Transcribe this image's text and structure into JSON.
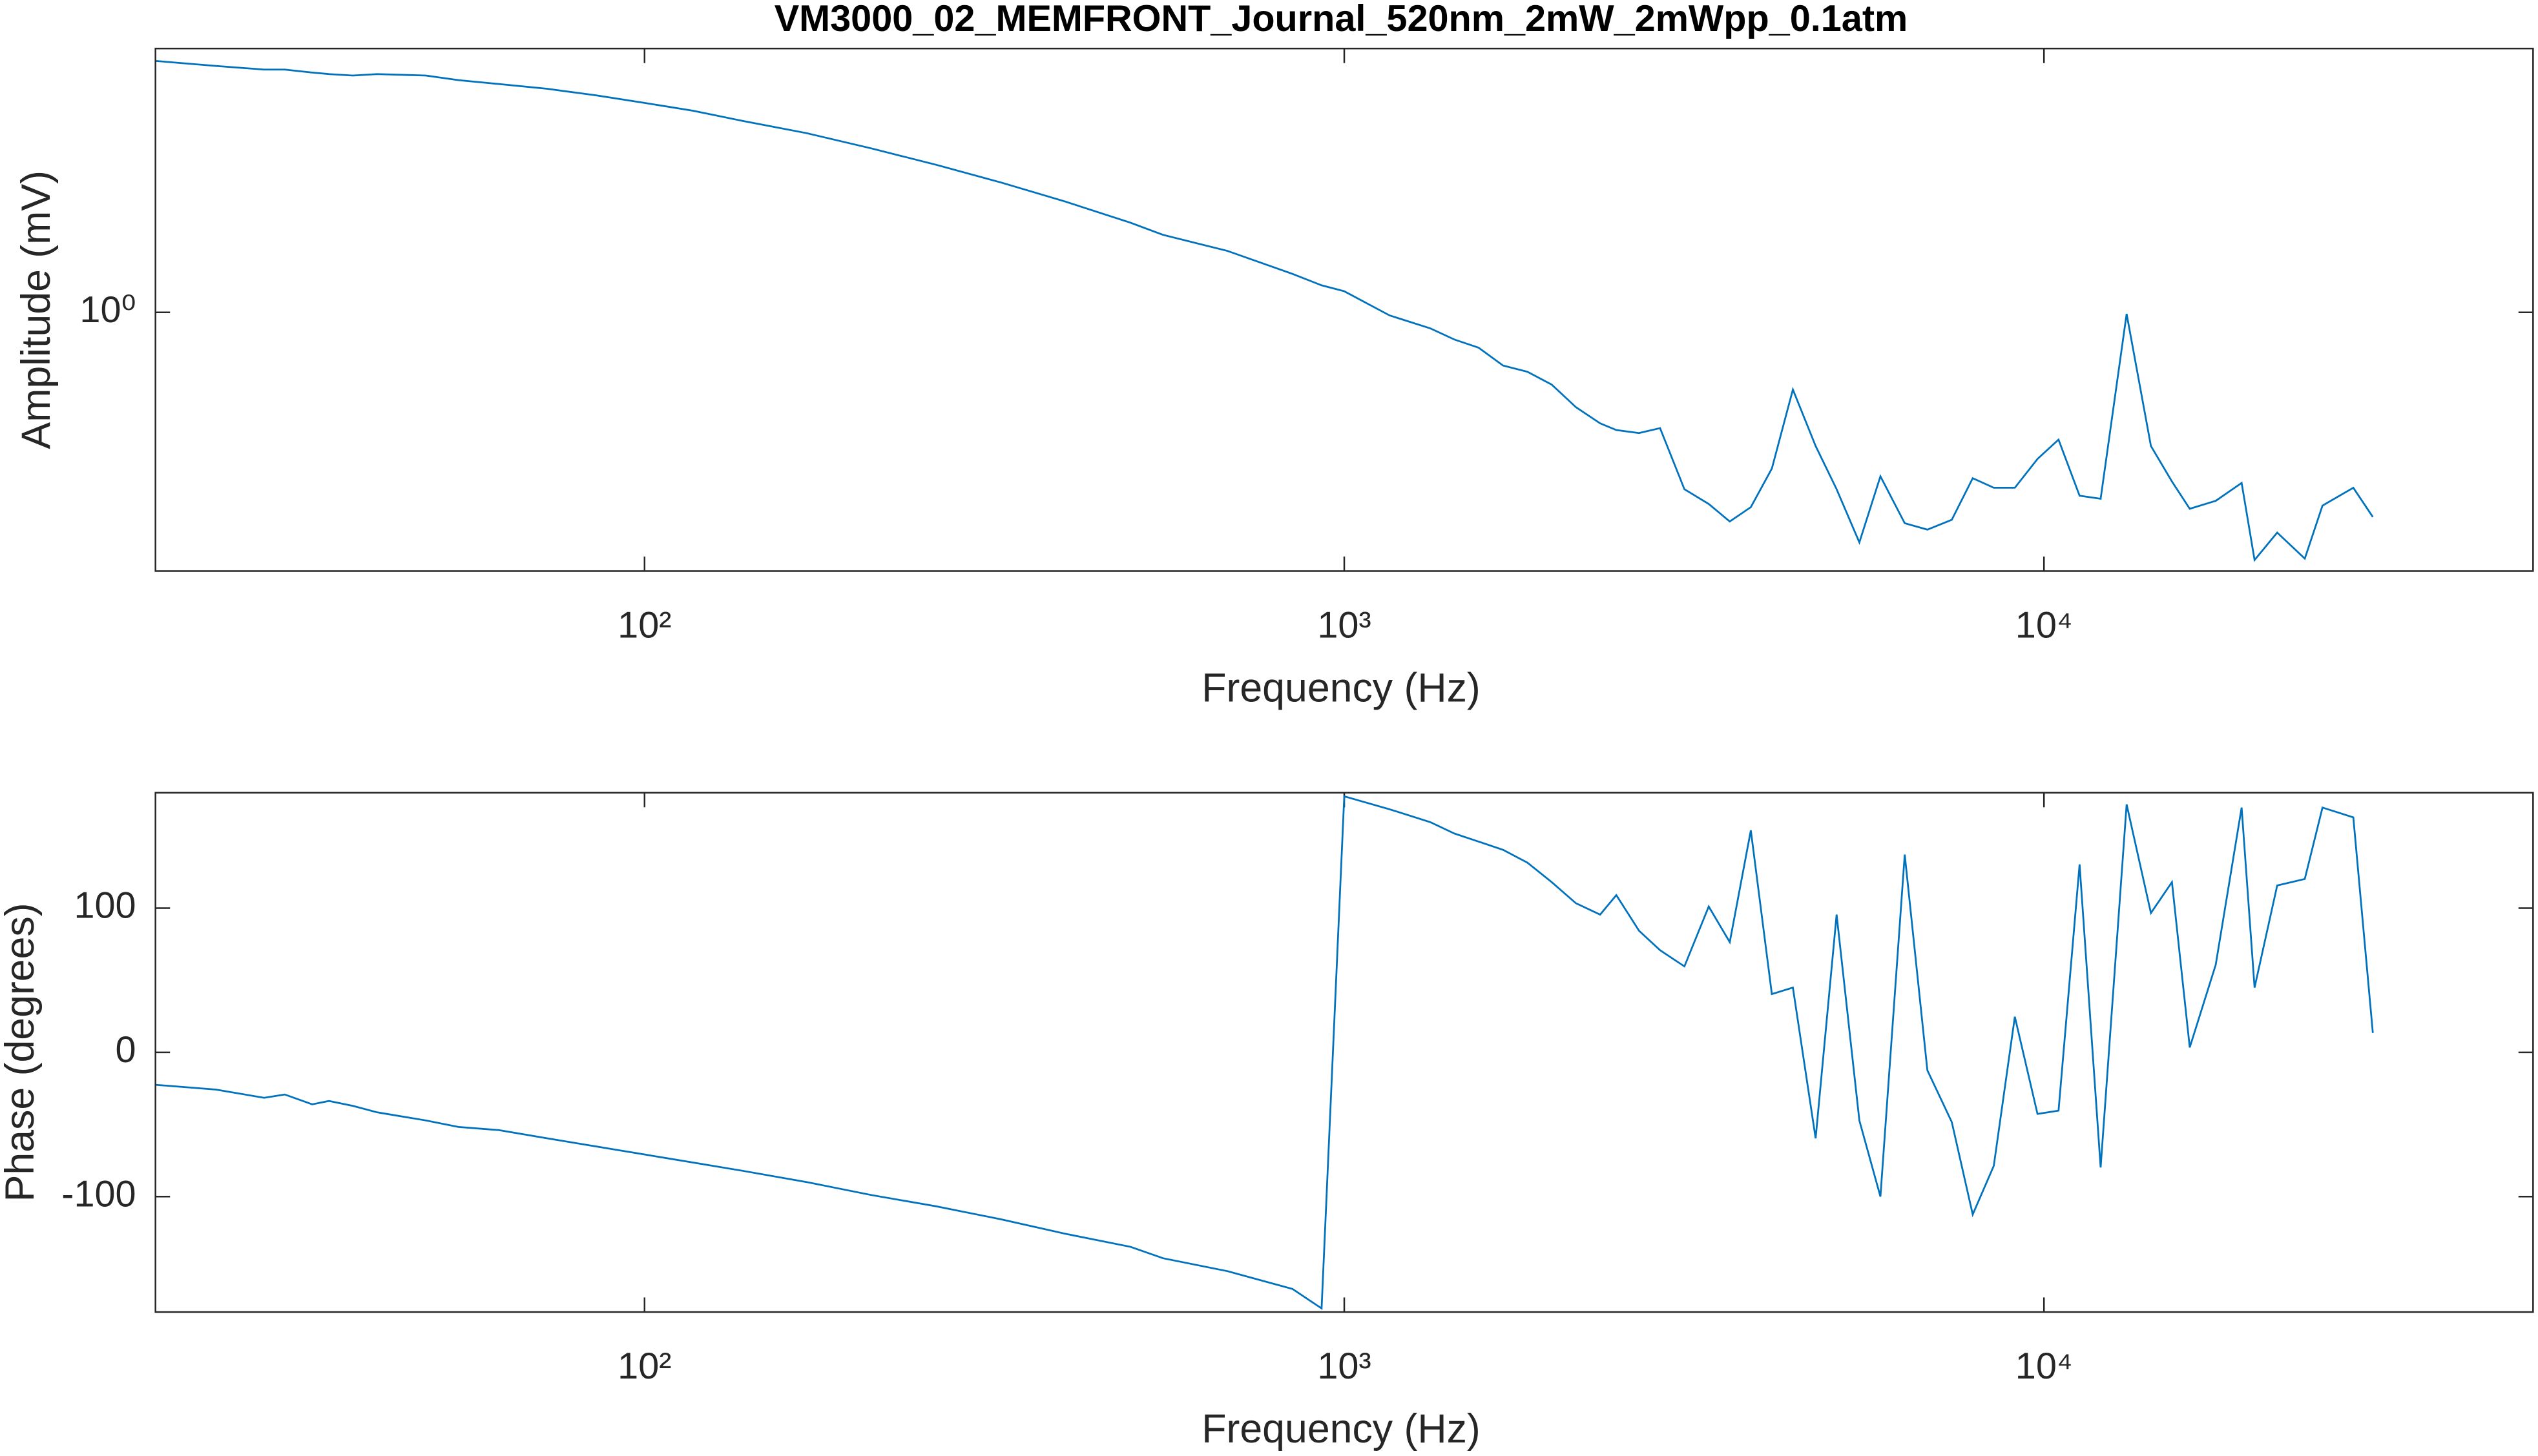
{
  "chart_data": [
    {
      "type": "line",
      "title": "VM3000_02_MEMFRONT_Journal_520nm_2mW_2mWpp_0.1atm",
      "xlabel": "Frequency (Hz)",
      "ylabel": "Amplitude (mV)",
      "xscale": "log",
      "yscale": "log",
      "xlim": [
        20,
        50000
      ],
      "ylim": [
        0.31,
        3.3
      ],
      "xticks": [
        {
          "value": 100,
          "label": "10²"
        },
        {
          "value": 1000,
          "label": "10³"
        },
        {
          "value": 10000,
          "label": "10⁴"
        }
      ],
      "yticks": [
        {
          "value": 1,
          "label": "10⁰"
        }
      ],
      "color": "#0072bd",
      "x": [
        20,
        24.4,
        28.6,
        30.6,
        33.5,
        35.4,
        38.3,
        41.5,
        48.7,
        54.2,
        61.9,
        72.6,
        85.2,
        100,
        117.3,
        137.7,
        170.4,
        210.9,
        261.0,
        323.0,
        399.7,
        494.9,
        550.7,
        681.3,
        843.3,
        928.1,
        1000,
        1161,
        1327,
        1437,
        1556,
        1686,
        1827,
        1979,
        2143,
        2321,
        2448,
        2638,
        2827,
        3063,
        3318,
        3556,
        3811,
        4084,
        4377,
        4717,
        5054,
        5447,
        5838,
        6324,
        6813,
        7383,
        7910,
        8477,
        9086,
        9789,
        10491,
        11243,
        12050,
        13126,
        14218,
        15237,
        16156,
        17597,
        19163,
        19998,
        21544,
        23592,
        25006,
        27676,
        29512
      ],
      "values": [
        3.12,
        3.05,
        3.0,
        3.0,
        2.96,
        2.94,
        2.92,
        2.94,
        2.92,
        2.86,
        2.81,
        2.75,
        2.67,
        2.58,
        2.49,
        2.38,
        2.25,
        2.1,
        1.95,
        1.8,
        1.65,
        1.5,
        1.42,
        1.32,
        1.19,
        1.13,
        1.1,
        0.986,
        0.93,
        0.884,
        0.852,
        0.786,
        0.764,
        0.721,
        0.651,
        0.605,
        0.587,
        0.579,
        0.592,
        0.449,
        0.42,
        0.388,
        0.414,
        0.493,
        0.705,
        0.546,
        0.449,
        0.353,
        0.476,
        0.385,
        0.374,
        0.391,
        0.472,
        0.452,
        0.452,
        0.515,
        0.562,
        0.436,
        0.43,
        0.993,
        0.546,
        0.465,
        0.411,
        0.426,
        0.462,
        0.326,
        0.369,
        0.328,
        0.417,
        0.452,
        0.396
      ]
    },
    {
      "type": "line",
      "xlabel": "Frequency (Hz)",
      "ylabel": "Phase (degrees)",
      "xscale": "log",
      "yscale": "linear",
      "xlim": [
        20,
        50000
      ],
      "ylim": [
        -180,
        180
      ],
      "xticks": [
        {
          "value": 100,
          "label": "10²"
        },
        {
          "value": 1000,
          "label": "10³"
        },
        {
          "value": 10000,
          "label": "10⁴"
        }
      ],
      "yticks": [
        -100,
        0,
        100
      ],
      "color": "#0072bd",
      "x": [
        20,
        24.4,
        28.6,
        30.6,
        33.5,
        35.4,
        38.3,
        41.5,
        48.7,
        54.2,
        61.9,
        72.6,
        85.2,
        100,
        117.3,
        137.7,
        170.4,
        210.9,
        261.0,
        323.0,
        399.7,
        494.9,
        550.7,
        681.3,
        843.3,
        928.1,
        1000,
        1161,
        1327,
        1437,
        1556,
        1686,
        1827,
        1979,
        2143,
        2321,
        2448,
        2638,
        2827,
        3063,
        3318,
        3556,
        3811,
        4084,
        4377,
        4717,
        5054,
        5447,
        5838,
        6324,
        6813,
        7383,
        7910,
        8477,
        9086,
        9789,
        10491,
        11243,
        12050,
        13126,
        14218,
        15237,
        16156,
        17597,
        19163,
        19998,
        21544,
        23592,
        25006,
        27676,
        29512
      ],
      "values": [
        -22.5,
        -25.8,
        -31.5,
        -29.2,
        -36.0,
        -33.7,
        -37.1,
        -41.6,
        -47.2,
        -51.7,
        -53.9,
        -59.6,
        -65.2,
        -70.8,
        -76.4,
        -82.0,
        -89.9,
        -98.9,
        -106.7,
        -115.7,
        -125.8,
        -134.8,
        -142.7,
        -151.7,
        -164.0,
        -177.5,
        177.5,
        168.5,
        159.6,
        151.7,
        146.1,
        140.4,
        131.5,
        118.0,
        103.4,
        95.5,
        109.0,
        84.3,
        70.8,
        59.6,
        101.1,
        76.4,
        153.9,
        40.4,
        44.9,
        -59.6,
        95.5,
        -47.2,
        -100.0,
        137.1,
        -12.4,
        -48.3,
        -112.4,
        -78.7,
        24.7,
        -42.7,
        -40.4,
        130.3,
        -79.8,
        171.9,
        96.6,
        118.0,
        3.4,
        60.7,
        169.7,
        44.9,
        115.7,
        120.2,
        169.7,
        162.9,
        13.5
      ]
    }
  ]
}
